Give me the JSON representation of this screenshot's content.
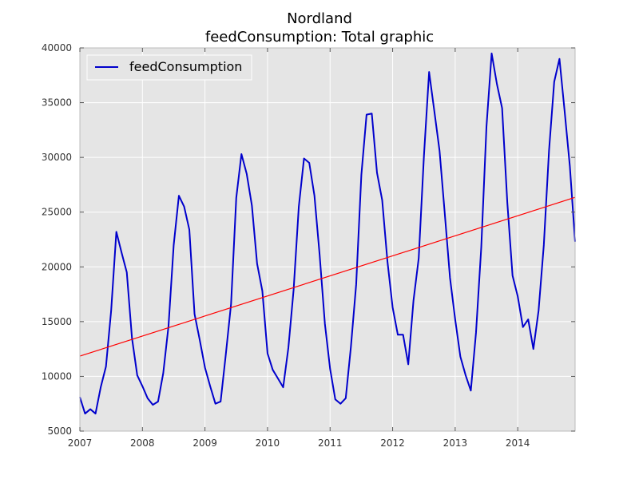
{
  "chart_data": {
    "type": "line",
    "title": "Nordland",
    "subtitle": "feedConsumption: Total graphic",
    "xlabel": "",
    "ylabel": "",
    "xlim": [
      2007.0,
      2014.917
    ],
    "ylim": [
      5000,
      40000
    ],
    "grid": true,
    "legend_position": "top-left",
    "xticks": [
      2007,
      2008,
      2009,
      2010,
      2011,
      2012,
      2013,
      2014
    ],
    "yticks": [
      5000,
      10000,
      15000,
      20000,
      25000,
      30000,
      35000,
      40000
    ],
    "series": [
      {
        "name": "feedConsumption",
        "color": "#0000cc",
        "x": [
          2007.0,
          2007.083,
          2007.167,
          2007.25,
          2007.333,
          2007.417,
          2007.5,
          2007.583,
          2007.667,
          2007.75,
          2007.833,
          2007.917,
          2008.0,
          2008.083,
          2008.167,
          2008.25,
          2008.333,
          2008.417,
          2008.5,
          2008.583,
          2008.667,
          2008.75,
          2008.833,
          2008.917,
          2009.0,
          2009.083,
          2009.167,
          2009.25,
          2009.333,
          2009.417,
          2009.5,
          2009.583,
          2009.667,
          2009.75,
          2009.833,
          2009.917,
          2010.0,
          2010.083,
          2010.167,
          2010.25,
          2010.333,
          2010.417,
          2010.5,
          2010.583,
          2010.667,
          2010.75,
          2010.833,
          2010.917,
          2011.0,
          2011.083,
          2011.167,
          2011.25,
          2011.333,
          2011.417,
          2011.5,
          2011.583,
          2011.667,
          2011.75,
          2011.833,
          2011.917,
          2012.0,
          2012.083,
          2012.167,
          2012.25,
          2012.333,
          2012.417,
          2012.5,
          2012.583,
          2012.667,
          2012.75,
          2012.833,
          2012.917,
          2013.0,
          2013.083,
          2013.167,
          2013.25,
          2013.333,
          2013.417,
          2013.5,
          2013.583,
          2013.667,
          2013.75,
          2013.833,
          2013.917,
          2014.0,
          2014.083,
          2014.167,
          2014.25,
          2014.333,
          2014.417,
          2014.5,
          2014.583,
          2014.667,
          2014.75,
          2014.833,
          2014.917
        ],
        "values": [
          8100,
          6600,
          7000,
          6600,
          9000,
          10900,
          16000,
          23200,
          21300,
          19500,
          13500,
          10100,
          9100,
          8000,
          7400,
          7700,
          10300,
          14600,
          22000,
          26500,
          25500,
          23400,
          15700,
          13300,
          10800,
          9100,
          7500,
          7700,
          12000,
          16600,
          26300,
          30300,
          28500,
          25600,
          20300,
          17800,
          12100,
          10600,
          9800,
          9000,
          12600,
          17900,
          25500,
          29900,
          29500,
          26500,
          21100,
          14800,
          10700,
          7900,
          7500,
          8000,
          12700,
          18400,
          28400,
          33900,
          34000,
          28600,
          26100,
          20500,
          16300,
          13800,
          13800,
          11100,
          16900,
          20800,
          30100,
          37800,
          34200,
          30600,
          24900,
          19000,
          15200,
          11800,
          10100,
          8700,
          14000,
          21800,
          32800,
          39500,
          36700,
          34500,
          25900,
          19200,
          17300,
          14500,
          15200,
          12500,
          16000,
          22000,
          30600,
          36900,
          39000,
          34200,
          29200,
          22300
        ]
      },
      {
        "name": "",
        "color": "#ff0000",
        "x": [
          2007.0,
          2014.917
        ],
        "values": [
          11850,
          26350
        ]
      }
    ]
  }
}
